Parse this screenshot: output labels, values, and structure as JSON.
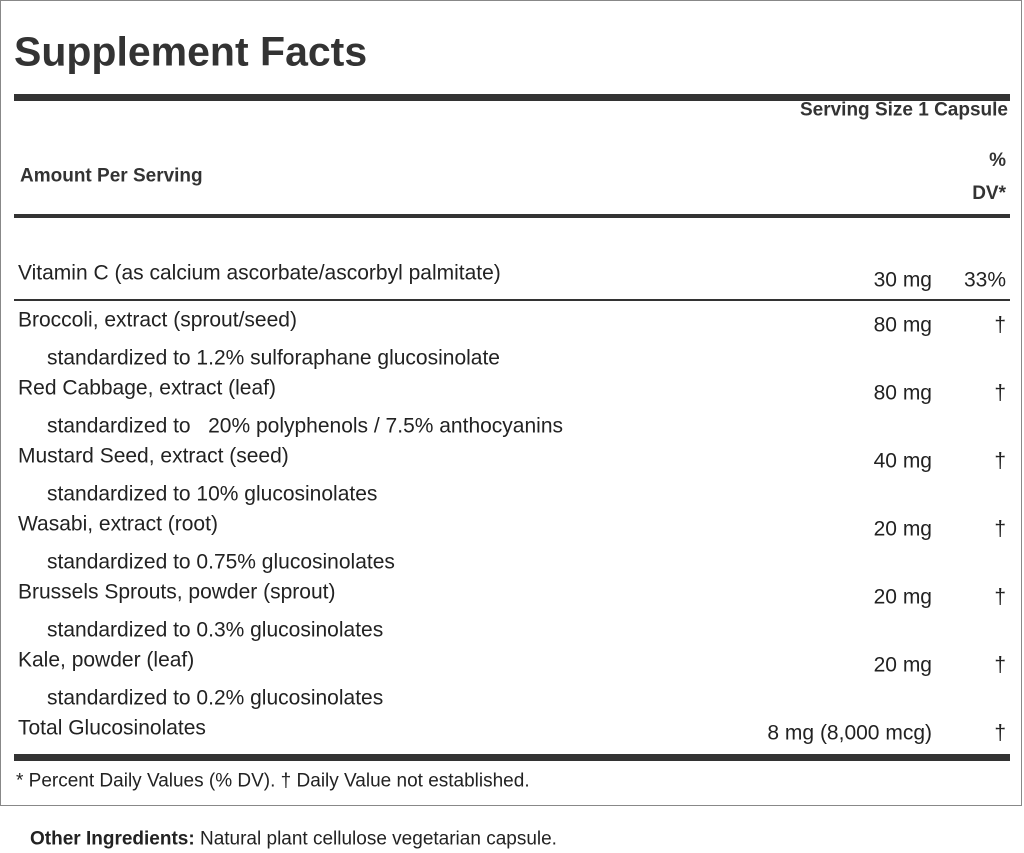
{
  "title": "Supplement Facts",
  "serving_size": "Serving Size 1 Capsule",
  "header": {
    "amount_per_serving": "Amount Per Serving",
    "dv": "% DV*"
  },
  "rows": [
    {
      "name": "Vitamin C (as calcium ascorbate/ascorbyl palmitate)",
      "amount": "30 mg",
      "dv": "33%"
    },
    {
      "name": "Broccoli, extract (sprout/seed)",
      "amount": "80 mg",
      "dv": "†",
      "detail": "standardized to 1.2% sulforaphane glucosinolate"
    },
    {
      "name": "Red Cabbage, extract (leaf)",
      "amount": "80 mg",
      "dv": "†",
      "detail": "standardized to   20% polyphenols / 7.5% anthocyanins"
    },
    {
      "name": "Mustard Seed, extract (seed)",
      "amount": "40 mg",
      "dv": "†",
      "detail": "standardized to 10% glucosinolates"
    },
    {
      "name": "Wasabi, extract (root)",
      "amount": "20 mg",
      "dv": "†",
      "detail": "standardized to 0.75% glucosinolates"
    },
    {
      "name": "Brussels Sprouts, powder (sprout)",
      "amount": "20 mg",
      "dv": "†",
      "detail": "standardized to 0.3% glucosinolates"
    },
    {
      "name": "Kale, powder (leaf)",
      "amount": "20 mg",
      "dv": "†",
      "detail": "standardized to 0.2% glucosinolates"
    },
    {
      "name": "Total Glucosinolates",
      "amount": "8 mg (8,000 mcg)",
      "dv": "†"
    }
  ],
  "footnote": "* Percent Daily Values (% DV). † Daily Value not established.",
  "other_ingredients": {
    "label": "Other Ingredients:",
    "text": "Natural plant cellulose vegetarian capsule."
  }
}
